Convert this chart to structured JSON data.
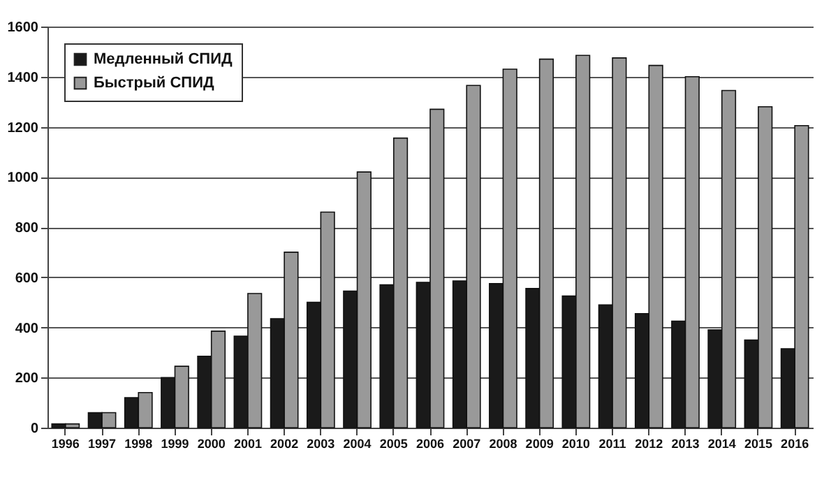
{
  "chart_data": {
    "type": "bar",
    "categories": [
      "1996",
      "1997",
      "1998",
      "1999",
      "2000",
      "2001",
      "2002",
      "2003",
      "2004",
      "2005",
      "2006",
      "2007",
      "2008",
      "2009",
      "2010",
      "2011",
      "2012",
      "2013",
      "2014",
      "2015",
      "2016"
    ],
    "series": [
      {
        "name": "Медленный СПИД",
        "color": "#1a1a1a",
        "values": [
          15,
          60,
          120,
          200,
          285,
          365,
          435,
          500,
          545,
          570,
          580,
          585,
          575,
          555,
          525,
          490,
          455,
          425,
          390,
          350,
          315
        ]
      },
      {
        "name": "Быстрый СПИД",
        "color": "#999999",
        "values": [
          15,
          60,
          140,
          245,
          385,
          535,
          700,
          860,
          1020,
          1155,
          1270,
          1365,
          1430,
          1470,
          1485,
          1475,
          1445,
          1400,
          1345,
          1280,
          1205
        ]
      }
    ],
    "ylim": [
      0,
      1600
    ],
    "yticks": [
      0,
      200,
      400,
      600,
      800,
      1000,
      1200,
      1400,
      1600
    ],
    "grid": "y",
    "legend": "top left"
  }
}
